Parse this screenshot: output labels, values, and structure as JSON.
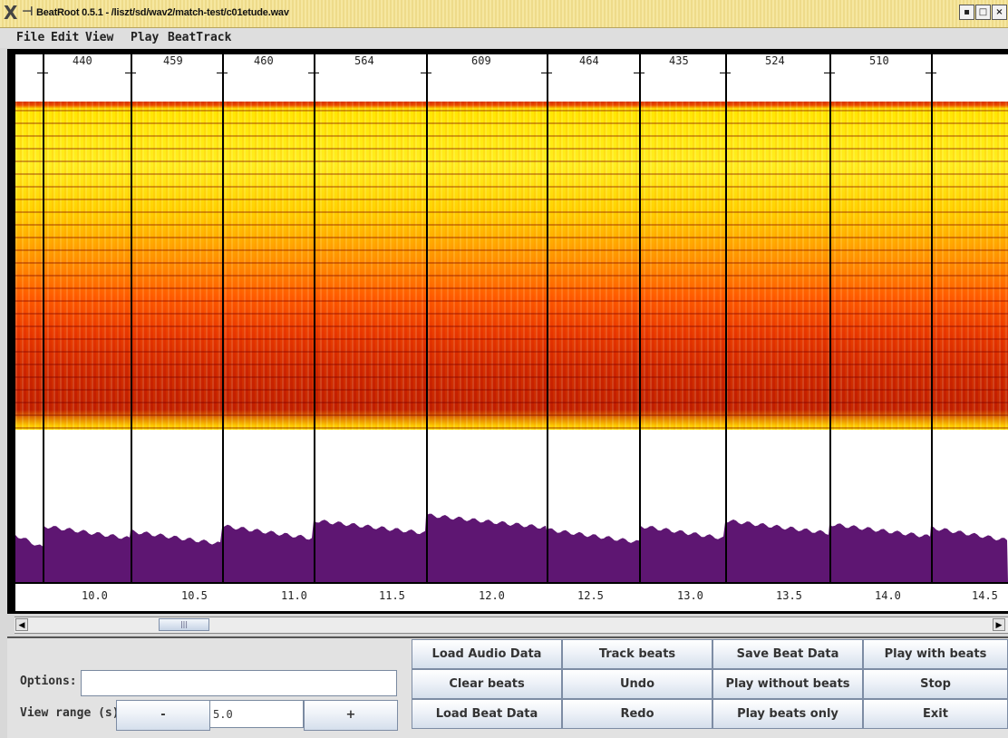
{
  "window": {
    "title": "BeatRoot 0.5.1 - /liszt/sd/wav2/match-test/c01etude.wav",
    "controls": [
      "▪",
      "□",
      "×"
    ]
  },
  "menu": [
    "File",
    "Edit",
    "View",
    "Play",
    "BeatTrack"
  ],
  "beats": {
    "intervals": [
      "440",
      "459",
      "460",
      "564",
      "609",
      "464",
      "435",
      "524",
      "510"
    ]
  },
  "timeline": {
    "labels": [
      "10.0",
      "10.5",
      "11.0",
      "11.5",
      "12.0",
      "12.5",
      "13.0",
      "13.5",
      "14.0",
      "14.5"
    ]
  },
  "scrollbar": {
    "left_arrow": "◀",
    "right_arrow": "▶",
    "thumb": "|||"
  },
  "controls": {
    "options_label": "Options:",
    "options_value": "",
    "view_range_label": "View range (s):",
    "minus_label": "-",
    "view_range_value": "5.0",
    "plus_label": "+"
  },
  "buttons": [
    [
      "Load Audio Data",
      "Track beats",
      "Save Beat Data",
      "Play with beats"
    ],
    [
      "Clear beats",
      "Undo",
      "Play without beats",
      "Stop"
    ],
    [
      "Load Beat Data",
      "Redo",
      "Play beats only",
      "Exit"
    ]
  ],
  "colors": {
    "waveform": "#5e1672",
    "beat_line": "#000000",
    "spectrogram_low": "#c01e00",
    "spectrogram_high": "#ffe600"
  }
}
